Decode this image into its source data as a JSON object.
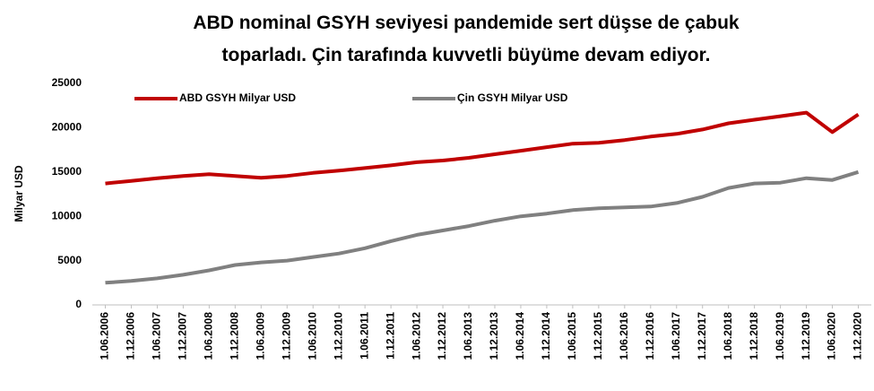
{
  "chart_data": {
    "type": "line",
    "title": [
      "ABD nominal GSYH seviyesi pandemide sert düşse de çabuk",
      "toparladı. Çin tarafında kuvvetli büyüme devam ediyor."
    ],
    "y_label": "Milyar USD",
    "categories": [
      "1.06.2006",
      "1.12.2006",
      "1.06.2007",
      "1.12.2007",
      "1.06.2008",
      "1.12.2008",
      "1.06.2009",
      "1.12.2009",
      "1.06.2010",
      "1.12.2010",
      "1.06.2011",
      "1.12.2011",
      "1.06.2012",
      "1.12.2012",
      "1.06.2013",
      "1.12.2013",
      "1.06.2014",
      "1.12.2014",
      "1.06.2015",
      "1.12.2015",
      "1.06.2016",
      "1.12.2016",
      "1.06.2017",
      "1.12.2017",
      "1.06.2018",
      "1.12.2018",
      "1.06.2019",
      "1.12.2019",
      "1.06.2020",
      "1.12.2020"
    ],
    "series": [
      {
        "name": "ABD GSYH Milyar USD",
        "color": "#c00000",
        "values": [
          13700,
          14000,
          14300,
          14550,
          14750,
          14550,
          14350,
          14550,
          14900,
          15150,
          15450,
          15750,
          16100,
          16300,
          16600,
          17000,
          17400,
          17800,
          18200,
          18300,
          18600,
          19000,
          19300,
          19800,
          20500,
          20900,
          21300,
          21700,
          19500,
          21500
        ]
      },
      {
        "name": "Çin GSYH Milyar USD",
        "color": "#808080",
        "values": [
          2500,
          2700,
          3000,
          3400,
          3900,
          4500,
          4800,
          5000,
          5400,
          5800,
          6400,
          7200,
          7900,
          8400,
          8900,
          9500,
          10000,
          10300,
          10700,
          10900,
          11000,
          11100,
          11500,
          12200,
          13200,
          13700,
          13800,
          14300,
          14100,
          15000
        ]
      }
    ],
    "ylim": [
      0,
      25000
    ],
    "yticks": [
      0,
      5000,
      10000,
      15000,
      20000,
      25000
    ],
    "grid": false,
    "legend": "top-left"
  }
}
